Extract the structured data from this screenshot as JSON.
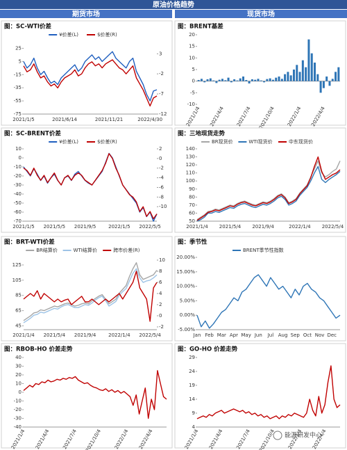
{
  "header": {
    "title": "原油价格趋势",
    "left": "期货市场",
    "right": "现货市场"
  },
  "watermark": "能源研发中心",
  "chart_data": [
    {
      "type": "line",
      "title": "图：SC-WTI价差",
      "legend": "top",
      "categories": [
        "2021/1/5",
        null,
        null,
        null,
        null,
        null,
        null,
        null,
        null,
        null,
        null,
        null,
        "2021/6/14",
        null,
        null,
        null,
        null,
        null,
        null,
        null,
        null,
        null,
        null,
        null,
        null,
        "2021/11/21",
        null,
        null,
        null,
        null,
        null,
        null,
        null,
        null,
        null,
        null,
        null,
        "2022/4/30",
        null,
        null
      ],
      "ylim": [
        -75,
        35
      ],
      "yticks": [
        25,
        5,
        -15,
        -35,
        -55,
        -75
      ],
      "y2lim": [
        -12,
        6
      ],
      "y2ticks": [
        3,
        -2,
        -7,
        -12
      ],
      "series": [
        {
          "name": "¥价差(L)",
          "color": "#1f5fbf",
          "values": [
            5,
            -5,
            0,
            10,
            -5,
            -15,
            -10,
            -20,
            -28,
            -25,
            -30,
            -20,
            -15,
            -10,
            -5,
            0,
            -10,
            -5,
            5,
            10,
            15,
            8,
            12,
            5,
            10,
            15,
            20,
            10,
            5,
            0,
            -5,
            5,
            10,
            -10,
            -20,
            -30,
            -45,
            -55,
            -40,
            -38
          ]
        },
        {
          "name": "$价差(R)",
          "color": "#c00000",
          "axis": "y2",
          "values": [
            0,
            -1.5,
            -1,
            0.5,
            -1.5,
            -3,
            -2.5,
            -4,
            -5,
            -4.5,
            -5.5,
            -4,
            -3,
            -2.5,
            -2,
            -1,
            -2.5,
            -2,
            -0.5,
            0.5,
            1,
            0,
            0.5,
            -0.5,
            0.5,
            1,
            1.5,
            0.5,
            -0.5,
            -1,
            -2,
            -1,
            0,
            -3,
            -4.5,
            -6,
            -8,
            -10,
            -8,
            -7.5
          ]
        }
      ]
    },
    {
      "type": "bar",
      "title": "图：BRENT基差",
      "color": "#2e75b6",
      "categories": [
        "2021/1/4",
        null,
        null,
        null,
        null,
        null,
        null,
        null,
        "2021/4/4",
        null,
        null,
        null,
        null,
        null,
        null,
        null,
        null,
        "2021/7/4",
        null,
        null,
        null,
        null,
        null,
        null,
        null,
        "2021/10/4",
        null,
        null,
        null,
        null,
        null,
        null,
        null,
        null,
        "2022/1/4",
        null,
        null,
        null,
        null,
        null,
        null,
        null,
        "2022/4/4",
        null,
        null,
        null,
        null,
        null
      ],
      "ylim": [
        -10,
        20
      ],
      "yticks": [
        20,
        15,
        10,
        5,
        0,
        -5,
        -10
      ],
      "values": [
        0.5,
        1,
        -0.5,
        0.8,
        1.2,
        0.3,
        -0.8,
        0.6,
        1,
        0.4,
        1.5,
        -0.5,
        0.8,
        0.3,
        1.2,
        2,
        0.5,
        -1,
        0.8,
        0.6,
        1,
        0.3,
        -0.5,
        0.9,
        1.2,
        0.6,
        1.5,
        2,
        1,
        3,
        4,
        2.5,
        5,
        7,
        4,
        9,
        6,
        18,
        12,
        8,
        3,
        -5,
        -3,
        2,
        -2,
        1,
        4,
        6
      ]
    },
    {
      "type": "line",
      "title": "图：SC-BRENT价差",
      "legend": "top",
      "categories": [
        "2021/1/5",
        null,
        null,
        null,
        null,
        null,
        null,
        null,
        null,
        "2021/5/5",
        null,
        null,
        null,
        null,
        null,
        null,
        null,
        null,
        "2021/9/5",
        null,
        null,
        null,
        null,
        null,
        null,
        null,
        null,
        null,
        "2022/1/5",
        null,
        null,
        null,
        null,
        null,
        null,
        null,
        null,
        "2022/5/5",
        null,
        null
      ],
      "ylim": [
        -70,
        10
      ],
      "yticks": [
        10,
        0,
        -10,
        -20,
        -30,
        -40,
        -50,
        -60,
        -70
      ],
      "y2lim": [
        -13,
        2
      ],
      "y2ticks": [
        2,
        0,
        -2,
        -4,
        -6,
        -8,
        -10
      ],
      "series": [
        {
          "name": "¥价差(L)",
          "color": "#1f5fbf",
          "values": [
            -10,
            -15,
            -20,
            -12,
            -18,
            -25,
            -20,
            -28,
            -22,
            -18,
            -25,
            -30,
            -22,
            -20,
            -25,
            -18,
            -15,
            -20,
            -25,
            -28,
            -30,
            -25,
            -20,
            -15,
            -5,
            5,
            0,
            -10,
            -20,
            -30,
            -35,
            -40,
            -45,
            -50,
            -60,
            -55,
            -65,
            -60,
            -70,
            -62
          ]
        },
        {
          "name": "$价差(R)",
          "color": "#c00000",
          "axis": "y2",
          "values": [
            -2,
            -2.5,
            -3.5,
            -2,
            -3.5,
            -4.5,
            -3.5,
            -5,
            -4,
            -3,
            -4.5,
            -5.5,
            -4,
            -3.5,
            -4.5,
            -3.5,
            -3,
            -3.5,
            -4.5,
            -5,
            -5.5,
            -4.5,
            -3.5,
            -2.5,
            -1,
            1,
            0,
            -2,
            -3.5,
            -5.5,
            -6.5,
            -7.5,
            -8,
            -9,
            -11,
            -10,
            -12,
            -11,
            -12.5,
            -11.5
          ]
        }
      ]
    },
    {
      "type": "line",
      "title": "图：三地现货走势",
      "legend": "top",
      "categories": [
        "2021/1/4",
        null,
        null,
        null,
        null,
        null,
        null,
        null,
        null,
        "2021/5/4",
        null,
        null,
        null,
        null,
        null,
        null,
        null,
        null,
        "2021/9/4",
        null,
        null,
        null,
        null,
        null,
        null,
        null,
        null,
        null,
        "2022/1/4",
        null,
        null,
        null,
        null,
        null,
        null,
        null,
        null,
        "2022/5/4",
        null,
        null
      ],
      "ylim": [
        50,
        140
      ],
      "yticks": [
        140,
        130,
        120,
        110,
        100,
        90,
        80,
        70,
        60,
        50
      ],
      "series": [
        {
          "name": "BR现货价",
          "color": "#a6a6a6",
          "values": [
            52,
            55,
            58,
            62,
            63,
            65,
            64,
            66,
            68,
            70,
            69,
            72,
            74,
            75,
            73,
            71,
            70,
            72,
            74,
            73,
            75,
            78,
            82,
            84,
            80,
            73,
            75,
            78,
            85,
            90,
            95,
            105,
            115,
            125,
            110,
            105,
            108,
            112,
            115,
            125
          ]
        },
        {
          "name": "WTI现货价",
          "color": "#2e75b6",
          "values": [
            50,
            52,
            55,
            60,
            60,
            62,
            61,
            63,
            65,
            67,
            66,
            69,
            71,
            72,
            70,
            68,
            67,
            69,
            71,
            70,
            72,
            75,
            79,
            81,
            77,
            70,
            72,
            75,
            82,
            87,
            92,
            100,
            110,
            118,
            102,
            98,
            102,
            105,
            108,
            112
          ]
        },
        {
          "name": "中东现货价",
          "color": "#c00000",
          "values": [
            51,
            54,
            57,
            61,
            62,
            64,
            63,
            65,
            67,
            69,
            68,
            71,
            73,
            74,
            72,
            70,
            69,
            71,
            73,
            72,
            74,
            77,
            81,
            83,
            79,
            72,
            74,
            77,
            84,
            89,
            94,
            104,
            118,
            130,
            112,
            102,
            105,
            108,
            110,
            114
          ]
        }
      ]
    },
    {
      "type": "line",
      "title": "图：BRT-WTI价差",
      "legend": "top",
      "categories": [
        "2021/1/4",
        null,
        null,
        null,
        null,
        null,
        null,
        null,
        null,
        "2021/5/4",
        null,
        null,
        null,
        null,
        null,
        null,
        null,
        null,
        "2021/9/4",
        null,
        null,
        null,
        null,
        null,
        null,
        null,
        null,
        null,
        "2022/1/4",
        null,
        null,
        null,
        null,
        null,
        null,
        null,
        null,
        "2022/5/4",
        null,
        null
      ],
      "ylim": [
        40,
        135
      ],
      "yticks": [
        125,
        105,
        85,
        65,
        45
      ],
      "y2lim": [
        -2.5,
        10.5
      ],
      "y2ticks": [
        10,
        8,
        6,
        4,
        2,
        0,
        -2
      ],
      "series": [
        {
          "name": "BR结算价",
          "color": "#a6a6a6",
          "values": [
            52,
            55,
            58,
            62,
            63,
            66,
            65,
            67,
            69,
            71,
            70,
            72,
            74,
            75,
            73,
            71,
            72,
            74,
            75,
            74,
            78,
            81,
            84,
            86,
            80,
            74,
            77,
            80,
            88,
            93,
            98,
            110,
            120,
            128,
            112,
            106,
            108,
            110,
            112,
            118
          ]
        },
        {
          "name": "WTI结算价",
          "color": "#9dc3e6",
          "values": [
            49,
            52,
            55,
            59,
            60,
            63,
            62,
            64,
            66,
            68,
            67,
            70,
            72,
            73,
            71,
            69,
            69,
            71,
            73,
            72,
            75,
            79,
            82,
            84,
            78,
            71,
            74,
            77,
            85,
            90,
            94,
            104,
            114,
            120,
            108,
            102,
            104,
            105,
            108,
            112
          ]
        },
        {
          "name": "跨市价差(R)",
          "color": "#c00000",
          "axis": "y2",
          "values": [
            3,
            3.5,
            4,
            3.5,
            4.5,
            3,
            4,
            3.5,
            3,
            2.5,
            3,
            2.5,
            2.8,
            3,
            2,
            2.5,
            3,
            3.5,
            2.5,
            2.5,
            3,
            2.5,
            2,
            2.5,
            3,
            2.5,
            3,
            3.5,
            4,
            3,
            4,
            5,
            6,
            8,
            5,
            4,
            3,
            -1,
            5,
            6
          ]
        }
      ]
    },
    {
      "type": "line",
      "title": "图：季节性",
      "legend": "top",
      "categories": [
        "Jan",
        null,
        null,
        "Feb",
        null,
        null,
        "Mar",
        null,
        null,
        "Apr",
        null,
        null,
        "May",
        null,
        null,
        "Jun",
        null,
        null,
        "Jul",
        null,
        null,
        "Aug",
        null,
        null,
        "Sep",
        null,
        null,
        "Oct",
        null,
        null,
        "Nov",
        null,
        null,
        "Dec",
        null,
        null
      ],
      "ylim": [
        -5,
        20
      ],
      "yticks": [
        {
          "value": 20,
          "label": "20.00%"
        },
        {
          "value": 15,
          "label": "15.00%"
        },
        {
          "value": 10,
          "label": "10.00%"
        },
        {
          "value": 5,
          "label": "5.00%"
        },
        {
          "value": 0,
          "label": "0.00%"
        },
        {
          "value": -5,
          "label": "-5.00%"
        }
      ],
      "series": [
        {
          "name": "BRENT季节性指数",
          "color": "#2e75b6",
          "values": [
            0,
            -4,
            -2,
            -4.5,
            -3,
            -1,
            1,
            2,
            4,
            6,
            5,
            8,
            9,
            11,
            13,
            14,
            12,
            10,
            13,
            11,
            9,
            10,
            8,
            6,
            9,
            7,
            10,
            11,
            9,
            8,
            6,
            5,
            3,
            1,
            -1,
            0
          ]
        }
      ]
    },
    {
      "type": "line",
      "title": "图：RBOB-HO 价差走势",
      "color": "#c00000",
      "categories": [
        "2021/1/4",
        null,
        null,
        null,
        null,
        null,
        null,
        null,
        "2021/4/4",
        null,
        null,
        null,
        null,
        null,
        null,
        null,
        null,
        "2021/7/4",
        null,
        null,
        null,
        null,
        null,
        null,
        null,
        "2021/10/4",
        null,
        null,
        null,
        null,
        null,
        null,
        null,
        null,
        "2022/1/4",
        null,
        null,
        null,
        null,
        null,
        null,
        null,
        "2022/4/4",
        null,
        null,
        null,
        null,
        null
      ],
      "ylim": [
        -40,
        40
      ],
      "yticks": [
        40,
        30,
        20,
        10,
        0,
        -10,
        -20,
        -30,
        -40
      ],
      "values": [
        2,
        5,
        8,
        6,
        10,
        9,
        12,
        11,
        14,
        12,
        13,
        15,
        14,
        16,
        15,
        17,
        16,
        18,
        14,
        12,
        10,
        11,
        8,
        6,
        5,
        3,
        2,
        4,
        1,
        3,
        0,
        2,
        -1,
        1,
        -2,
        -5,
        -15,
        -3,
        -25,
        -10,
        5,
        -30,
        -8,
        -20,
        25,
        10,
        -5,
        -8
      ]
    },
    {
      "type": "line",
      "title": "图：GO-HO 价差走势",
      "color": "#c00000",
      "categories": [
        "2021/1/4",
        null,
        null,
        null,
        null,
        null,
        null,
        null,
        "2021/4/4",
        null,
        null,
        null,
        null,
        null,
        null,
        null,
        null,
        "2021/7/4",
        null,
        null,
        null,
        null,
        null,
        null,
        null,
        "2021/10/4",
        null,
        null,
        null,
        null,
        null,
        null,
        null,
        null,
        "2022/1/4",
        null,
        null,
        null,
        null,
        null,
        null,
        null,
        "2022/4/4",
        null,
        null,
        null,
        null,
        null
      ],
      "ylim": [
        4,
        29
      ],
      "yticks": [
        29,
        24,
        19,
        14,
        9,
        4
      ],
      "values": [
        7,
        7.5,
        8,
        7.5,
        8.5,
        8,
        9,
        9.5,
        10,
        9,
        9.5,
        10,
        10.5,
        10,
        9.5,
        10,
        9,
        9.5,
        8.5,
        9,
        8,
        8.5,
        7.5,
        8,
        7,
        7.5,
        8,
        7,
        8,
        7.5,
        8.5,
        8,
        9,
        8.5,
        8,
        7.5,
        9,
        14,
        10,
        8,
        15,
        9,
        12,
        20,
        26,
        14,
        11,
        12
      ]
    }
  ]
}
